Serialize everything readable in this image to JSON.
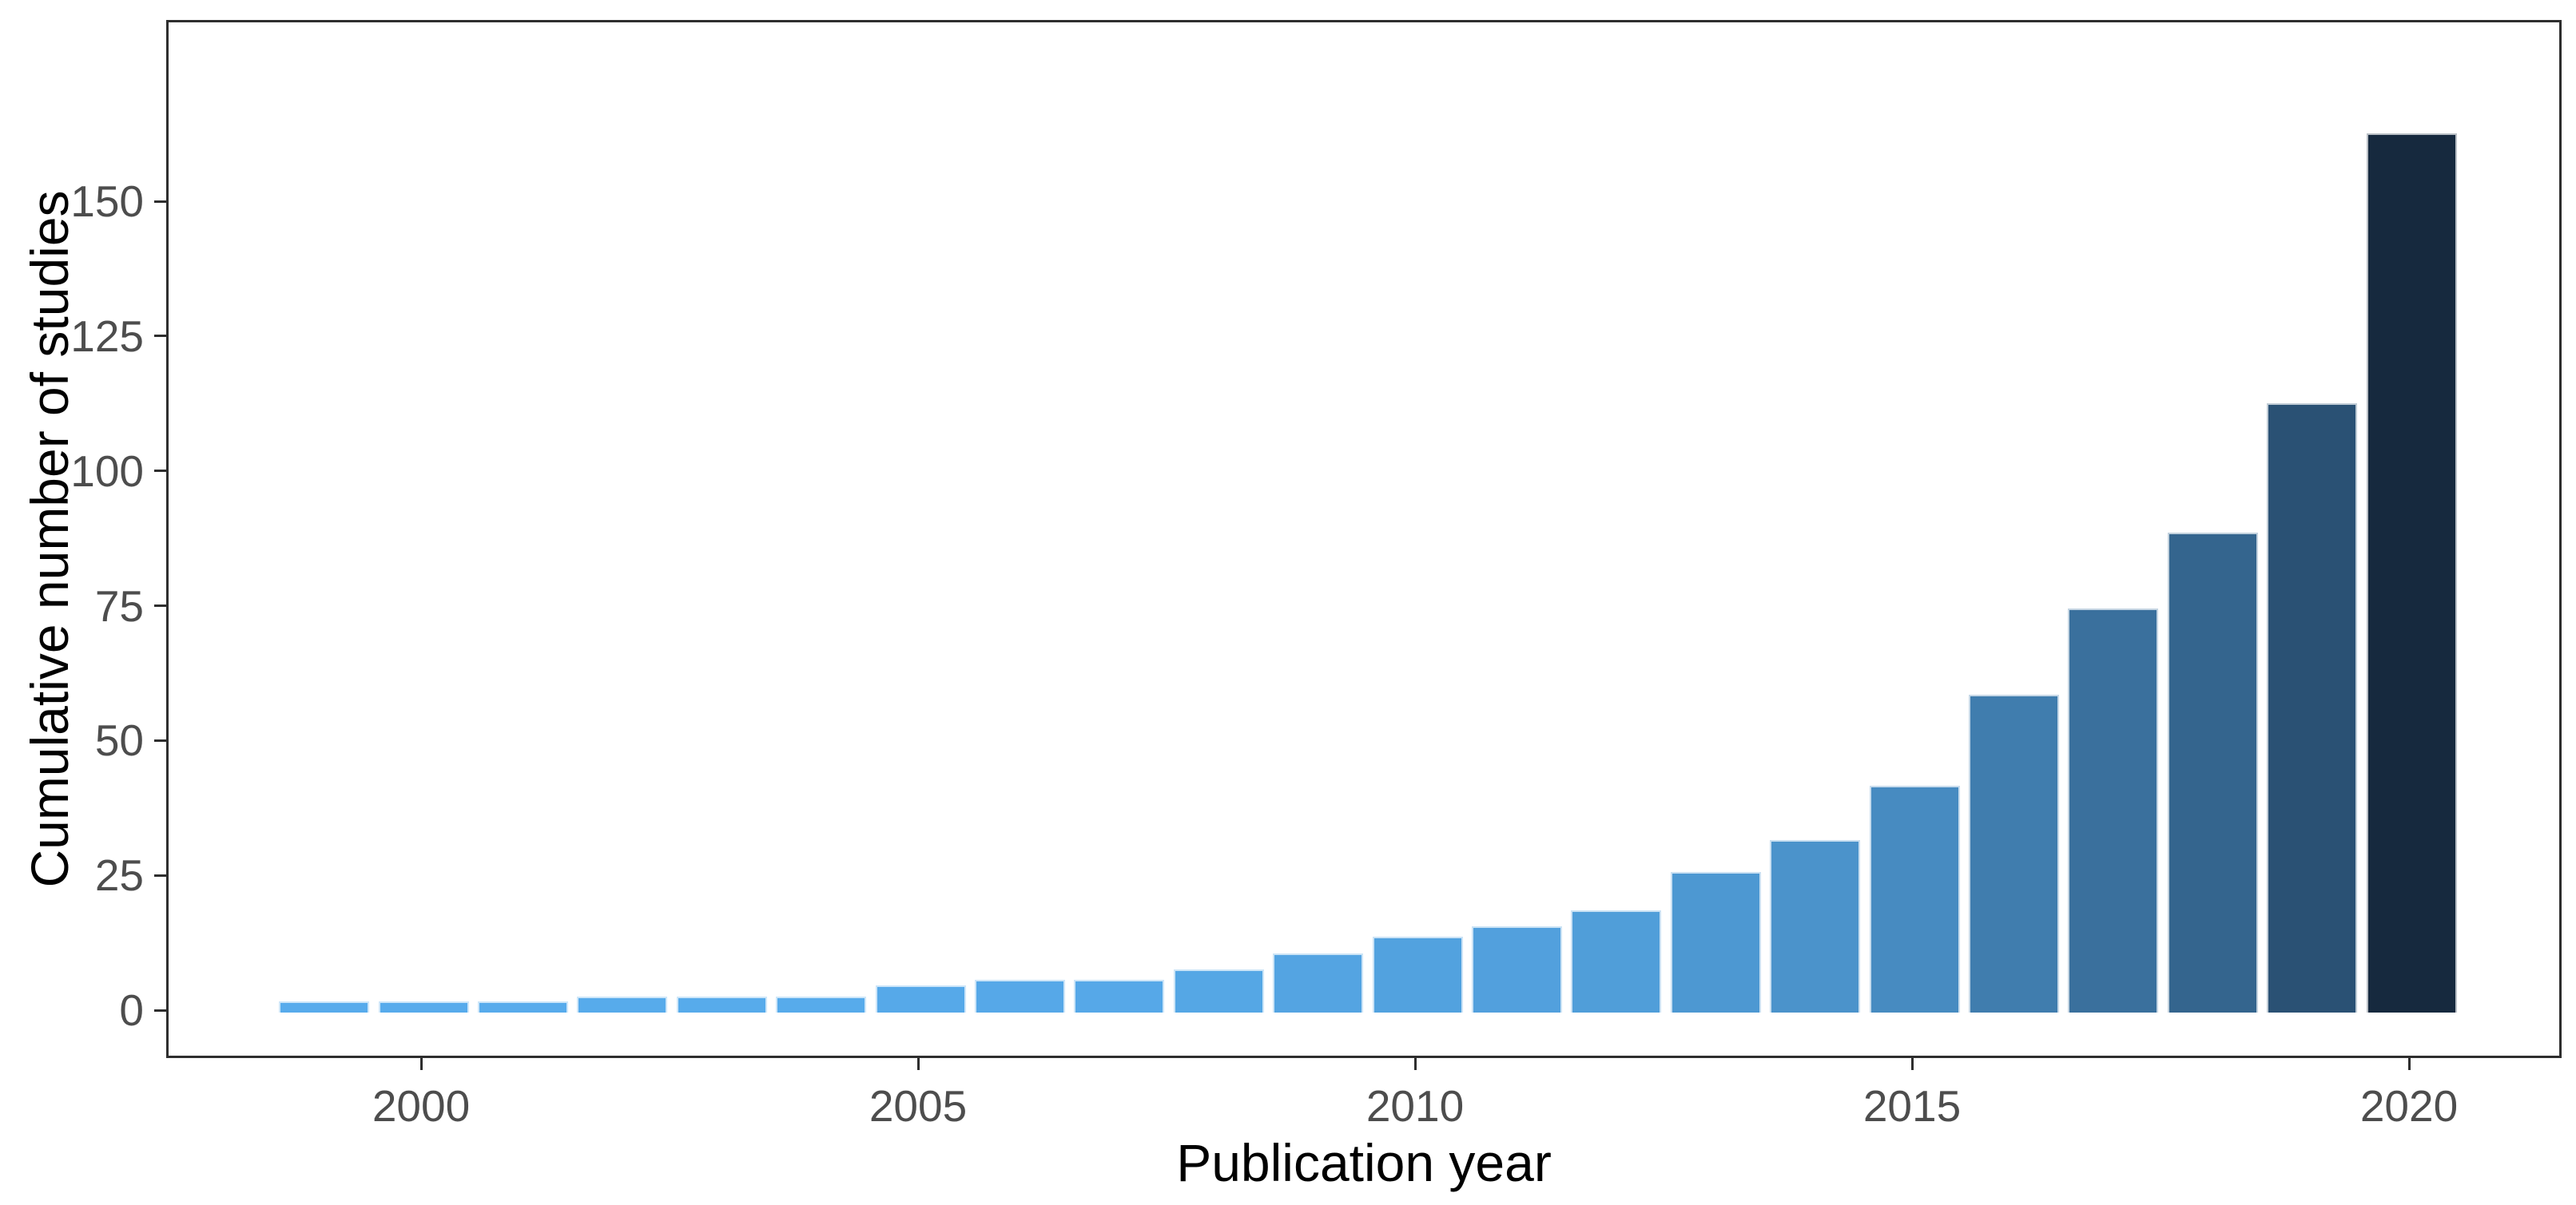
{
  "chart_data": {
    "type": "bar",
    "title": "",
    "xlabel": "Publication year",
    "ylabel": "Cumulative number of studies",
    "x": [
      1999,
      2000,
      2001,
      2002,
      2003,
      2004,
      2005,
      2006,
      2007,
      2008,
      2009,
      2010,
      2011,
      2012,
      2013,
      2014,
      2015,
      2016,
      2017,
      2018,
      2019,
      2020
    ],
    "values": [
      2,
      2,
      2,
      3,
      3,
      3,
      5,
      6,
      6,
      8,
      11,
      14,
      16,
      19,
      26,
      32,
      42,
      59,
      75,
      89,
      113,
      163
    ],
    "series_name": "Cumulative number of studies",
    "xticks": [
      2000,
      2005,
      2010,
      2015,
      2020
    ],
    "xtick_labels": [
      "2000",
      "2005",
      "2010",
      "2015",
      "2020"
    ],
    "yticks": [
      0,
      25,
      50,
      75,
      100,
      125,
      150
    ],
    "ytick_labels": [
      "0",
      "25",
      "50",
      "75",
      "100",
      "125",
      "150"
    ],
    "ylim": [
      0,
      163
    ],
    "grid": "off",
    "legend": "none",
    "colors": {
      "bar_gradient_low": "#58adee",
      "bar_gradient_high": "#16293e",
      "bar_border": "rgba(255,255,255,0.70)",
      "panel_border": "#2e2e2e",
      "tick_text": "#4d4d4d",
      "axis_title_text": "#000000",
      "background": "#ffffff"
    }
  }
}
